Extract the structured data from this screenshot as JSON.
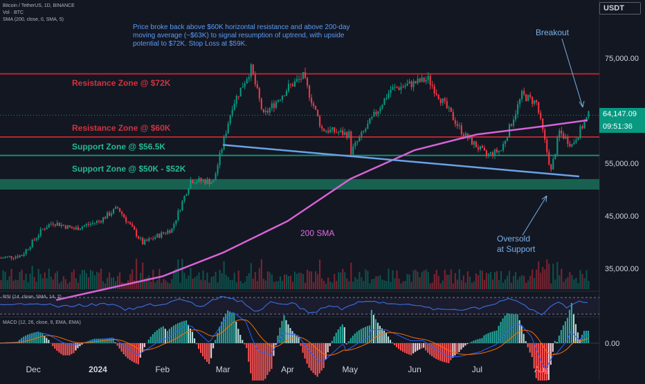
{
  "legend": {
    "symbol": "Bitcoin / TetherUS, 1D, BINANCE",
    "volume": "Vol · BTC",
    "sma": "SMA (200, close, 0, SMA, 5)"
  },
  "currency": "USDT",
  "price_badge": {
    "price": "64,147.09",
    "countdown": "09:51:36"
  },
  "analysis_note": "Price broke back above $60K horizontal resistance and above 200-day moving average (~$63K) to signal resumption of uptrend, with upside potential to $72K. Stop Loss at $59K.",
  "zones": {
    "resistance_72k": "Resistance Zone @ $72K",
    "resistance_60k": "Resistance Zone @ $60K",
    "support_56k": "Support Zone @ $56.5K",
    "support_50k": "Support Zone @ $50K - $52K"
  },
  "annotations": {
    "breakout": "Breakout",
    "oversold_line1": "Oversold",
    "oversold_line2": "at Support",
    "sma_label": "200 SMA"
  },
  "rsi_legend": "RSI (14, close, SMA, 14, 2)",
  "macd_legend": "MACD (12, 26, close, 9, EMA, EMA)",
  "colors": {
    "background": "#131722",
    "bull": "#089981",
    "bear": "#f23645",
    "resistance": "#b22833",
    "support": "#1e8c72",
    "sma": "#d863d6",
    "trendline": "#6aa3e6",
    "rsi": "#3a6bd4",
    "macd": "#2962ff",
    "signal": "#ff6d00"
  },
  "chart_data": {
    "type": "candlestick",
    "title": "Bitcoin / TetherUS, 1D, BINANCE",
    "x_tick_labels": [
      "Dec",
      "2024",
      "Feb",
      "Mar",
      "Apr",
      "May",
      "Jun",
      "Jul",
      "Aug"
    ],
    "y_tick_labels": [
      "75,000.00",
      "65,000.00",
      "55,000.00",
      "45,000.00",
      "35,000.00"
    ],
    "ylim": [
      32000,
      81000
    ],
    "last_price": 64147.09,
    "horizontal_levels": [
      {
        "name": "Resistance Zone @ $72K",
        "value": 72000
      },
      {
        "name": "Resistance Zone @ $60K",
        "value": 60000
      },
      {
        "name": "Support Zone @ $56.5K",
        "value": 56500
      },
      {
        "name": "Support Zone @ $50K - $52K",
        "low": 50000,
        "high": 52000
      }
    ],
    "close_path": [
      [
        "2023-11-15",
        37000
      ],
      [
        "2023-11-25",
        37500
      ],
      [
        "2023-12-05",
        42500
      ],
      [
        "2023-12-10",
        43800
      ],
      [
        "2023-12-20",
        42500
      ],
      [
        "2024-01-01",
        44000
      ],
      [
        "2024-01-10",
        46500
      ],
      [
        "2024-01-22",
        39800
      ],
      [
        "2024-02-05",
        42500
      ],
      [
        "2024-02-14",
        51800
      ],
      [
        "2024-02-25",
        51500
      ],
      [
        "2024-03-05",
        66000
      ],
      [
        "2024-03-14",
        73000
      ],
      [
        "2024-03-20",
        64000
      ],
      [
        "2024-04-01",
        69500
      ],
      [
        "2024-04-08",
        71500
      ],
      [
        "2024-04-17",
        61500
      ],
      [
        "2024-04-30",
        60500
      ],
      [
        "2024-05-01",
        57200
      ],
      [
        "2024-05-20",
        69000
      ],
      [
        "2024-06-07",
        71000
      ],
      [
        "2024-06-24",
        60500
      ],
      [
        "2024-07-05",
        56500
      ],
      [
        "2024-07-12",
        57500
      ],
      [
        "2024-07-22",
        68000
      ],
      [
        "2024-07-29",
        66500
      ],
      [
        "2024-08-05",
        53500
      ],
      [
        "2024-08-09",
        61000
      ],
      [
        "2024-08-15",
        58500
      ],
      [
        "2024-08-23",
        64147
      ]
    ],
    "sma_200_path": [
      [
        "2023-12-12",
        29000
      ],
      [
        "2024-02-01",
        33500
      ],
      [
        "2024-03-01",
        38000
      ],
      [
        "2024-04-01",
        44000
      ],
      [
        "2024-05-01",
        52000
      ],
      [
        "2024-06-01",
        57500
      ],
      [
        "2024-07-01",
        60500
      ],
      [
        "2024-08-01",
        62000
      ],
      [
        "2024-08-23",
        63200
      ]
    ],
    "trendline": [
      [
        "2024-03-01",
        58500
      ],
      [
        "2024-08-19",
        52500
      ]
    ]
  }
}
